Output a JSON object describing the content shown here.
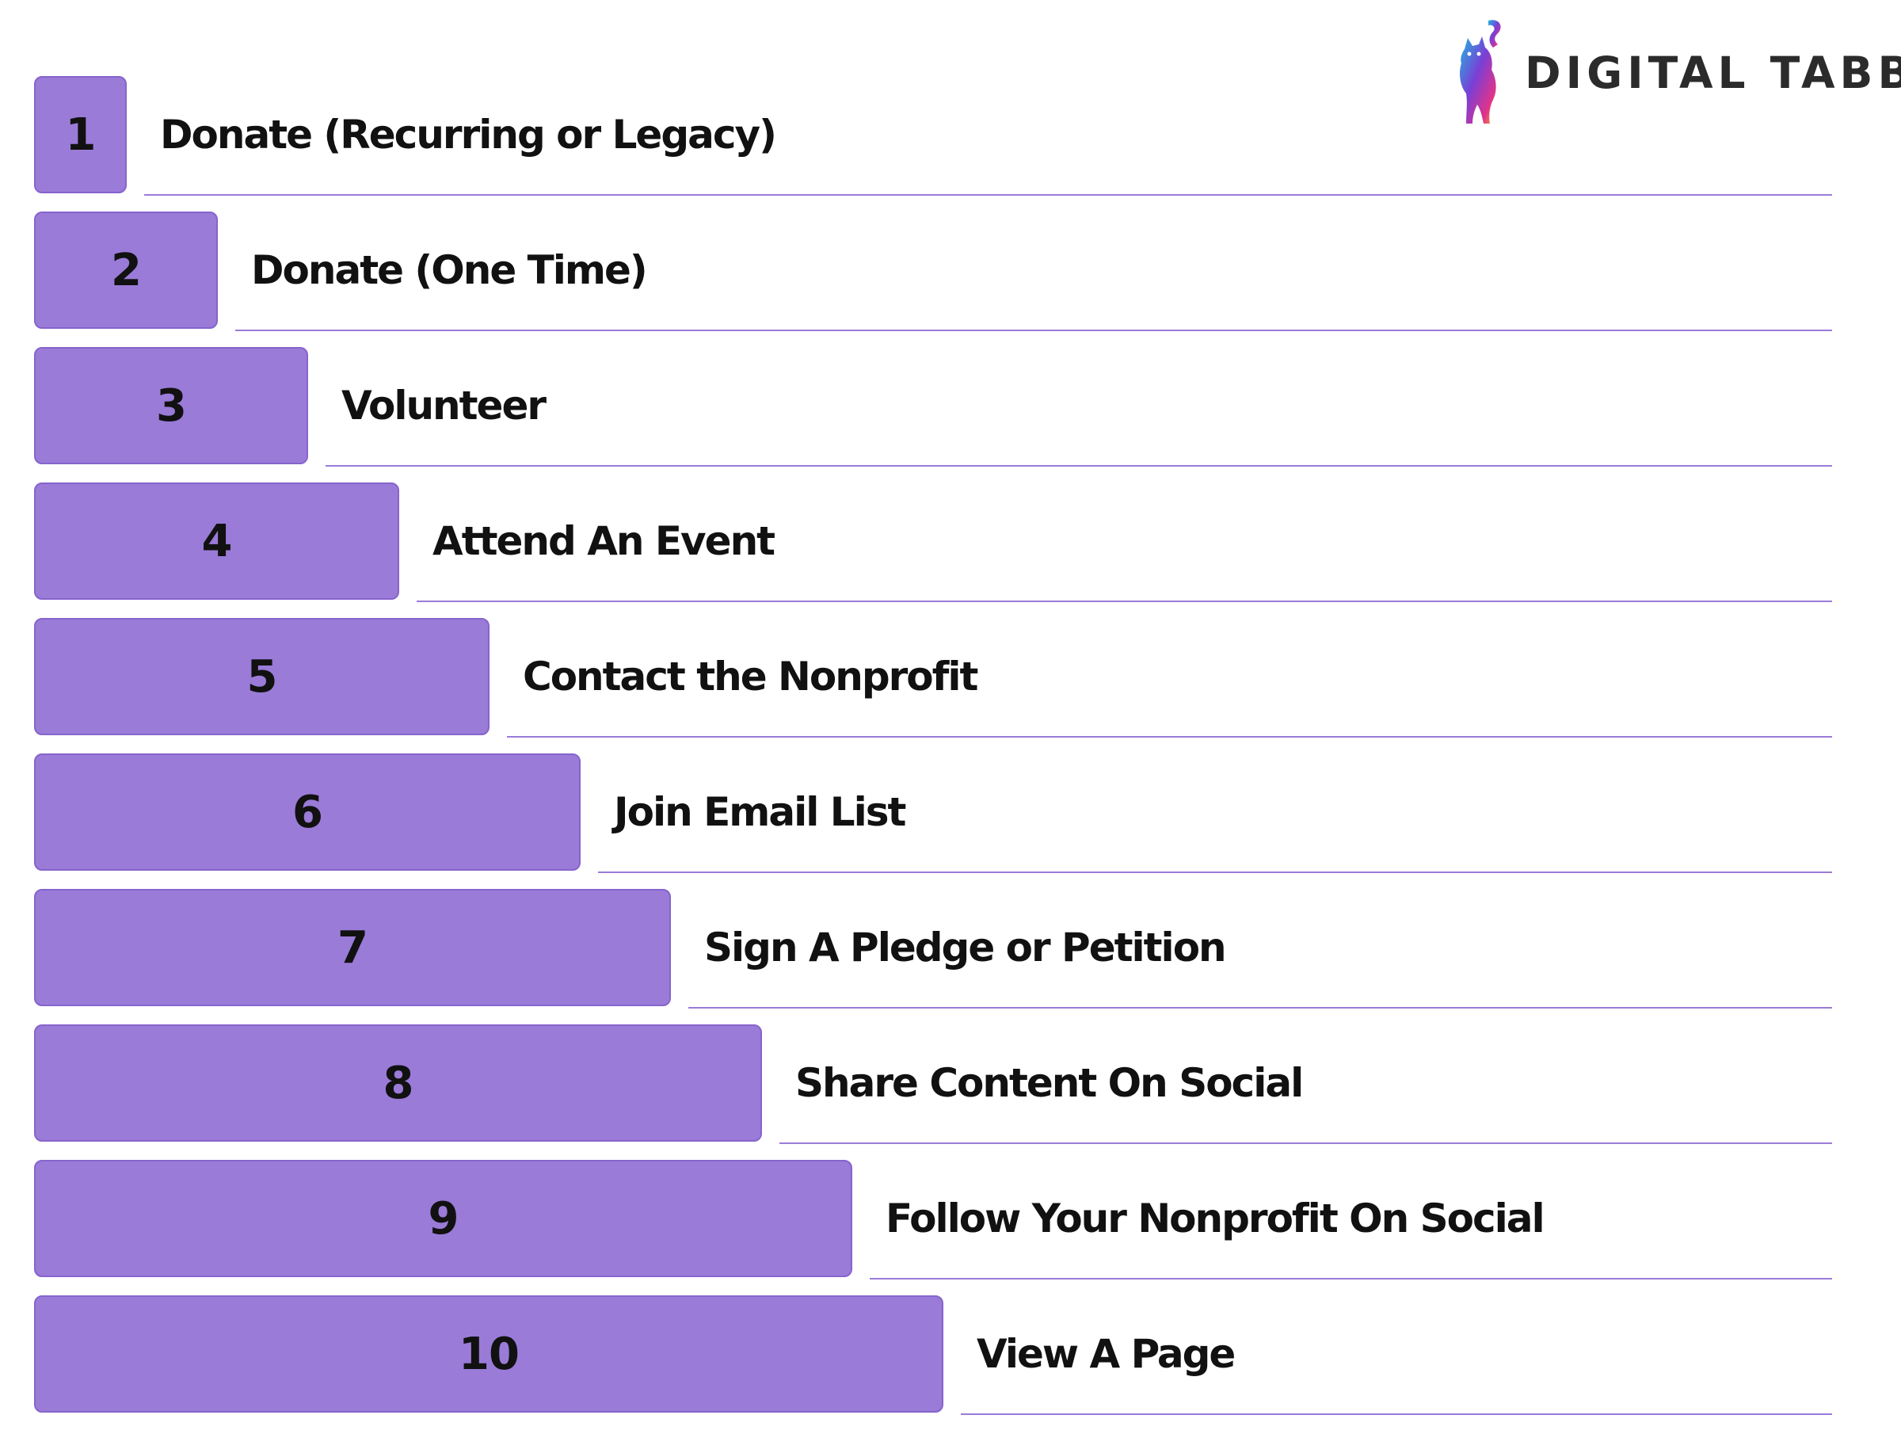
{
  "brand": {
    "name": "DIGITAL TABBY",
    "logo_icon": "cat-silhouette-icon",
    "logo_colors": [
      "#1fb6e0",
      "#7a3fd6",
      "#e0338a",
      "#f5a623"
    ]
  },
  "colors": {
    "bar_fill": "#9a7bd8",
    "bar_border": "#8664cc",
    "rule": "#9a7bd8",
    "text": "#111111"
  },
  "steps": [
    {
      "number": "1",
      "label": "Donate (Recurring or Legacy)"
    },
    {
      "number": "2",
      "label": "Donate (One Time)"
    },
    {
      "number": "3",
      "label": "Volunteer"
    },
    {
      "number": "4",
      "label": "Attend An Event"
    },
    {
      "number": "5",
      "label": "Contact the Nonprofit"
    },
    {
      "number": "6",
      "label": "Join Email List"
    },
    {
      "number": "7",
      "label": "Sign A Pledge or Petition"
    },
    {
      "number": "8",
      "label": "Share Content On Social"
    },
    {
      "number": "9",
      "label": "Follow Your Nonprofit On Social"
    },
    {
      "number": "10",
      "label": "View A Page"
    }
  ]
}
